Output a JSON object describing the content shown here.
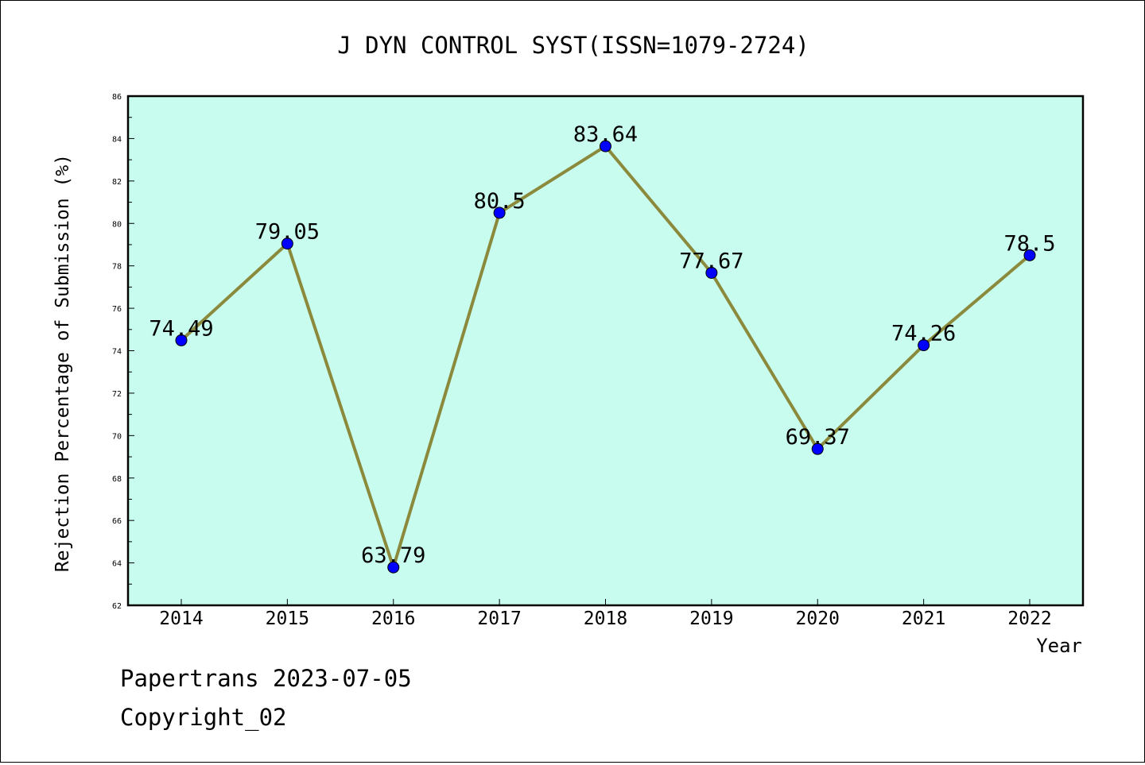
{
  "chart_data": {
    "type": "line",
    "title": "J DYN CONTROL SYST(ISSN=1079-2724)",
    "xlabel": "Year",
    "ylabel": "Rejection Percentage of Submission (%)",
    "categories": [
      "2014",
      "2015",
      "2016",
      "2017",
      "2018",
      "2019",
      "2020",
      "2021",
      "2022"
    ],
    "values": [
      74.49,
      79.05,
      63.79,
      80.5,
      83.64,
      77.67,
      69.37,
      74.26,
      78.5
    ],
    "data_labels": [
      "74.49",
      "79.05",
      "63.79",
      "80.5",
      "83.64",
      "77.67",
      "69.37",
      "74.26",
      "78.5"
    ],
    "ylim": [
      62,
      86
    ],
    "yticks": [
      62,
      64,
      66,
      68,
      70,
      72,
      74,
      76,
      78,
      80,
      82,
      84,
      86
    ],
    "grid": false,
    "colors": {
      "plot_background": "#c8fcee",
      "line": "#8b8a3c",
      "marker": "#0000ff"
    }
  },
  "footer": {
    "line1": "Papertrans 2023-07-05",
    "line2": "Copyright_02"
  }
}
